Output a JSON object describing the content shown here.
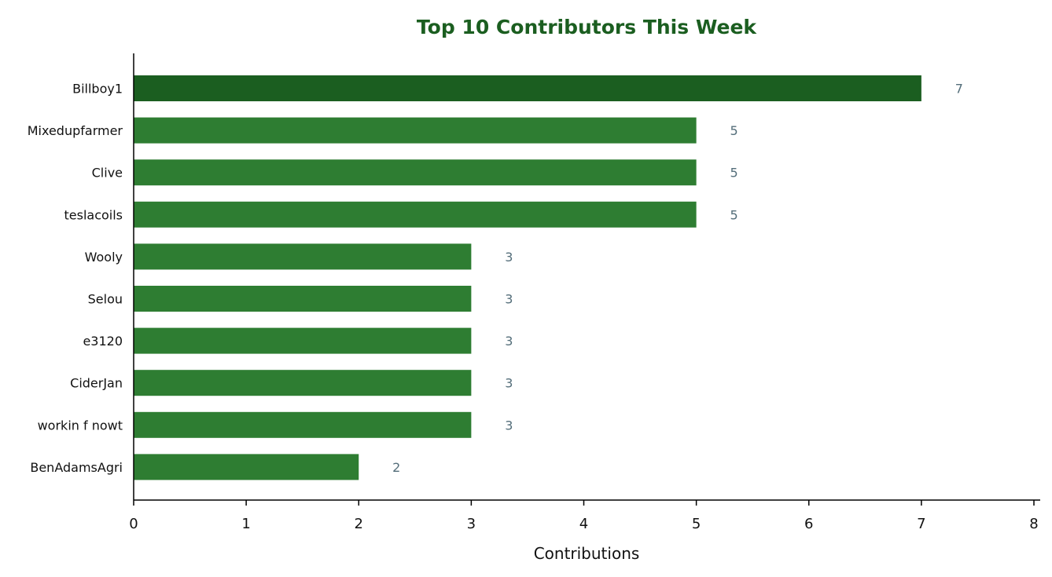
{
  "chart_data": {
    "type": "bar",
    "orientation": "horizontal",
    "title": "Top 10 Contributors This Week",
    "xlabel": "Contributions",
    "ylabel": "",
    "xlim": [
      0,
      8
    ],
    "x_ticks": [
      0,
      1,
      2,
      3,
      4,
      5,
      6,
      7,
      8
    ],
    "grid": false,
    "categories": [
      "Billboy1",
      "Mixedupfarmer",
      "Clive",
      "teslacoils",
      "Wooly",
      "Selou",
      "e3120",
      "CiderJan",
      "workin f nowt",
      "BenAdamsAgri"
    ],
    "values": [
      7,
      5,
      5,
      5,
      3,
      3,
      3,
      3,
      3,
      2
    ],
    "data_labels": [
      "7",
      "5",
      "5",
      "5",
      "3",
      "3",
      "3",
      "3",
      "3",
      "2"
    ],
    "colors": {
      "title": "#1b5e20",
      "top_bar": "#1b5e20",
      "bar": "#2e7d32",
      "data_label": "#546e7a",
      "axis": "#000000"
    }
  }
}
